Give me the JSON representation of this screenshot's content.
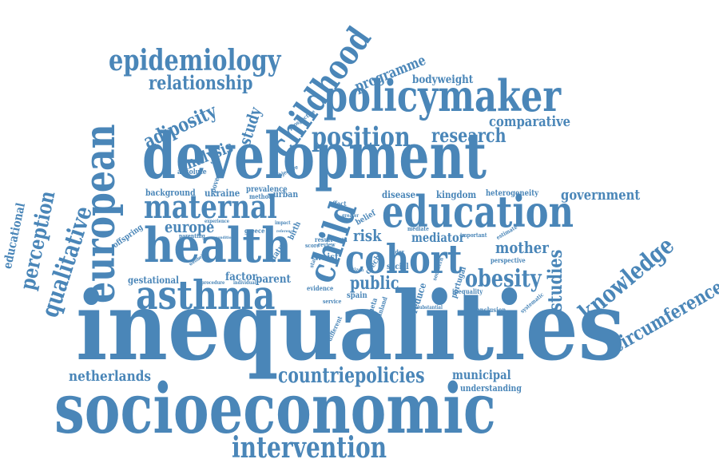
{
  "color": "#4a86b8",
  "words": [
    {
      "text": "inequalities"
    },
    {
      "text": "socioeconomic"
    },
    {
      "text": "development"
    },
    {
      "text": "policymaker"
    },
    {
      "text": "health"
    },
    {
      "text": "education"
    },
    {
      "text": "european"
    },
    {
      "text": "childhood"
    },
    {
      "text": "asthma"
    },
    {
      "text": "cohort"
    },
    {
      "text": "maternal"
    },
    {
      "text": "epidemiology"
    },
    {
      "text": "intervention"
    },
    {
      "text": "position"
    },
    {
      "text": "knowledge"
    },
    {
      "text": "qualitative"
    },
    {
      "text": "perception"
    },
    {
      "text": "child"
    },
    {
      "text": "obesity"
    },
    {
      "text": "circumference"
    },
    {
      "text": "relationship"
    },
    {
      "text": "adiposity"
    },
    {
      "text": "countriepolicies"
    },
    {
      "text": "netherlands"
    },
    {
      "text": "research"
    },
    {
      "text": "studies"
    },
    {
      "text": "comparative"
    },
    {
      "text": "government"
    },
    {
      "text": "programme"
    },
    {
      "text": "analysis"
    },
    {
      "text": "study"
    },
    {
      "text": "public"
    },
    {
      "text": "europe"
    },
    {
      "text": "bodyweight"
    },
    {
      "text": "mother"
    },
    {
      "text": "risk"
    },
    {
      "text": "municipal"
    },
    {
      "text": "educational"
    },
    {
      "text": "mediator"
    },
    {
      "text": "kingdom"
    },
    {
      "text": "factor"
    },
    {
      "text": "parent"
    },
    {
      "text": "gestational"
    },
    {
      "text": "background"
    },
    {
      "text": "ukraine"
    },
    {
      "text": "urban"
    },
    {
      "text": "disease"
    },
    {
      "text": "prevalence"
    },
    {
      "text": "heterogeneity"
    },
    {
      "text": "understanding"
    },
    {
      "text": "offspring"
    },
    {
      "text": "reduce"
    },
    {
      "text": "spain"
    },
    {
      "text": "absolute"
    },
    {
      "text": "poverty"
    },
    {
      "text": "method"
    },
    {
      "text": "waist"
    },
    {
      "text": "belief"
    },
    {
      "text": "portugal"
    },
    {
      "text": "greece"
    },
    {
      "text": "status"
    },
    {
      "text": "birth"
    },
    {
      "text": "social"
    },
    {
      "text": "evidence"
    },
    {
      "text": "meta"
    },
    {
      "text": "finland"
    },
    {
      "text": "different"
    },
    {
      "text": "systematic"
    },
    {
      "text": "conclusion"
    },
    {
      "text": "inequality"
    },
    {
      "text": "important"
    },
    {
      "text": "perspective"
    },
    {
      "text": "estimate"
    },
    {
      "text": "parenting"
    },
    {
      "text": "experience"
    },
    {
      "text": "effect"
    },
    {
      "text": "objective"
    },
    {
      "text": "prospective"
    },
    {
      "text": "czech"
    },
    {
      "text": "result"
    },
    {
      "text": "data"
    },
    {
      "text": "mediate"
    },
    {
      "text": "service"
    },
    {
      "text": "substantial"
    },
    {
      "text": "individual"
    },
    {
      "text": "procedure"
    },
    {
      "text": "score"
    },
    {
      "text": "review"
    },
    {
      "text": "index"
    },
    {
      "text": "impact"
    },
    {
      "text": "wellbeing"
    },
    {
      "text": "reference"
    },
    {
      "text": "staff"
    },
    {
      "text": "southern"
    },
    {
      "text": "condition"
    },
    {
      "text": "citizen"
    },
    {
      "text": "greater"
    }
  ]
}
